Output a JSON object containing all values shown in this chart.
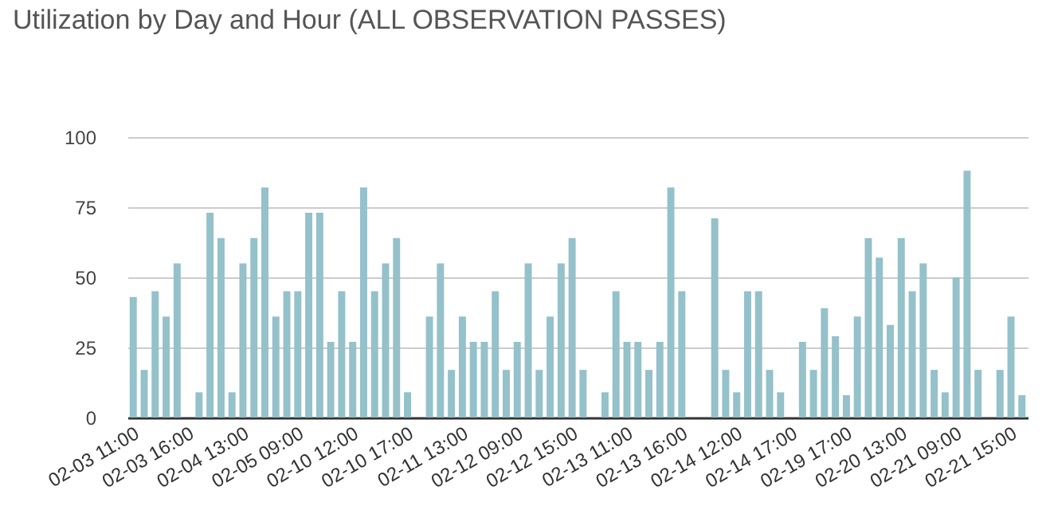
{
  "chart_data": {
    "type": "bar",
    "title": "Utilization by Day and Hour (ALL OBSERVATION PASSES)",
    "categories": [
      "02-03 11:00",
      null,
      null,
      null,
      null,
      "02-03 16:00",
      null,
      null,
      null,
      null,
      "02-04 13:00",
      null,
      null,
      null,
      null,
      "02-05 09:00",
      null,
      null,
      null,
      null,
      "02-10 12:00",
      null,
      null,
      null,
      null,
      "02-10 17:00",
      null,
      null,
      null,
      null,
      "02-11 13:00",
      null,
      null,
      null,
      null,
      "02-12 09:00",
      null,
      null,
      null,
      null,
      "02-12 15:00",
      null,
      null,
      null,
      null,
      "02-13 11:00",
      null,
      null,
      null,
      null,
      "02-13 16:00",
      null,
      null,
      null,
      null,
      "02-14 12:00",
      null,
      null,
      null,
      null,
      "02-14 17:00",
      null,
      null,
      null,
      null,
      "02-19 17:00",
      null,
      null,
      null,
      null,
      "02-20 13:00",
      null,
      null,
      null,
      null,
      "02-21 09:00",
      null,
      null,
      null,
      null,
      "02-21 15:00",
      null
    ],
    "values": [
      43,
      17,
      45,
      36,
      55,
      null,
      9,
      73,
      64,
      9,
      55,
      64,
      82,
      36,
      45,
      45,
      73,
      73,
      27,
      45,
      27,
      82,
      45,
      55,
      64,
      9,
      null,
      36,
      55,
      17,
      36,
      27,
      27,
      45,
      17,
      27,
      55,
      17,
      36,
      55,
      64,
      17,
      null,
      9,
      45,
      27,
      27,
      17,
      27,
      82,
      45,
      null,
      null,
      71,
      17,
      9,
      45,
      45,
      17,
      9,
      null,
      27,
      17,
      39,
      29,
      8,
      36,
      64,
      57,
      33,
      64,
      45,
      55,
      17,
      9,
      50,
      88,
      17,
      null,
      17,
      36,
      8
    ],
    "color": "#94c1ca",
    "ylim": [
      0,
      100
    ],
    "yticks": [
      0,
      25,
      50,
      75,
      100
    ],
    "grid": "y"
  }
}
